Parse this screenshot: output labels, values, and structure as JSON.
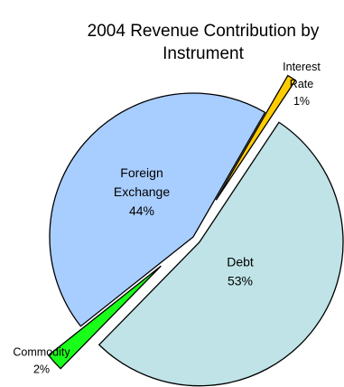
{
  "chart_data": {
    "type": "pie",
    "title_lines": [
      "2004 Revenue Contribution by",
      "Instrument"
    ],
    "slices": [
      {
        "name_lines": [
          "Interest",
          "Rate"
        ],
        "value": 1,
        "label": "1%",
        "color": "#ffcc00",
        "label_position": "outside"
      },
      {
        "name_lines": [
          "Debt"
        ],
        "value": 53,
        "label": "53%",
        "color": "#bfe3e6",
        "label_position": "inside"
      },
      {
        "name_lines": [
          "Commodity"
        ],
        "value": 2,
        "label": "2%",
        "color": "#1aff1a",
        "label_position": "outside"
      },
      {
        "name_lines": [
          "Foreign",
          "Exchange"
        ],
        "value": 44,
        "label": "44%",
        "color": "#a8cdff",
        "label_position": "inside"
      }
    ],
    "exploded": true,
    "start_angle_deg": 30,
    "direction": "clockwise",
    "legend": "none"
  }
}
